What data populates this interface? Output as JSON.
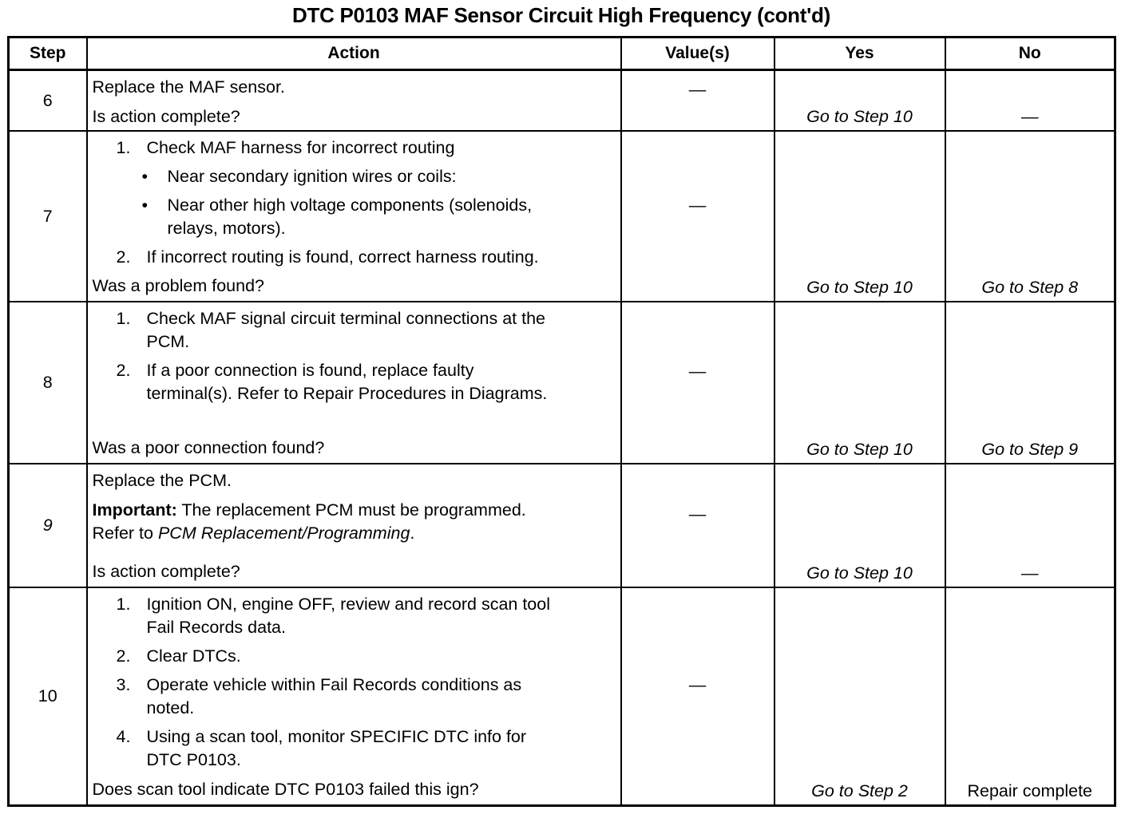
{
  "title": "DTC P0103 MAF Sensor Circuit High Frequency (cont'd)",
  "headers": {
    "step": "Step",
    "action": "Action",
    "values": "Value(s)",
    "yes": "Yes",
    "no": "No"
  },
  "rows": [
    {
      "step": "6",
      "step_italic": false,
      "action": [
        {
          "type": "text",
          "text": "Replace the MAF sensor."
        },
        {
          "type": "question",
          "text": "Is action complete?"
        }
      ],
      "value": "—",
      "yes": "Go to Step 10",
      "no": "—"
    },
    {
      "step": "7",
      "step_italic": false,
      "action": [
        {
          "type": "num",
          "n": "1.",
          "text": "Check MAF harness for incorrect routing"
        },
        {
          "type": "bullet",
          "text": "Near secondary ignition wires or coils:"
        },
        {
          "type": "bullet",
          "text": "Near other high voltage components (solenoids,\nrelays, motors)."
        },
        {
          "type": "num",
          "n": "2.",
          "text": "If incorrect routing is found, correct harness routing."
        },
        {
          "type": "question",
          "text": "Was a problem found?"
        }
      ],
      "value": "—",
      "yes": "Go to Step 10",
      "no": "Go to Step 8"
    },
    {
      "step": "8",
      "step_italic": false,
      "action": [
        {
          "type": "num",
          "n": "1.",
          "text": "Check MAF signal circuit terminal connections at the\nPCM."
        },
        {
          "type": "num",
          "n": "2.",
          "text": "If a poor connection is found, replace faulty\nterminal(s). Refer to Repair Procedures in Diagrams."
        },
        {
          "type": "question",
          "text": "Was a poor connection found?"
        }
      ],
      "value": "—",
      "yes": "Go to Step 10",
      "no": "Go to Step 9"
    },
    {
      "step": "9",
      "step_italic": true,
      "action": [
        {
          "type": "text",
          "text": "Replace the PCM."
        },
        {
          "type": "important",
          "label": "Important:",
          "text": " The replacement PCM must be programmed.",
          "text2": "Refer to ",
          "ref": "PCM Replacement/Programming",
          "end": "."
        },
        {
          "type": "question",
          "text": "Is action complete?"
        }
      ],
      "value": "—",
      "yes": "Go to Step 10",
      "no": "—"
    },
    {
      "step": "10",
      "step_italic": false,
      "action": [
        {
          "type": "num",
          "n": "1.",
          "text": "Ignition ON, engine OFF, review and record scan tool\nFail Records data."
        },
        {
          "type": "num",
          "n": "2.",
          "text": "Clear DTCs."
        },
        {
          "type": "num",
          "n": "3.",
          "text": "Operate vehicle within Fail Records conditions as\nnoted."
        },
        {
          "type": "num",
          "n": "4.",
          "text": "Using a scan tool, monitor SPECIFIC DTC info for\nDTC P0103."
        },
        {
          "type": "question",
          "text": "Does scan tool indicate DTC P0103 failed this ign?"
        }
      ],
      "value": "—",
      "yes": "Go to Step 2",
      "no": "Repair complete",
      "no_plain": true
    }
  ]
}
